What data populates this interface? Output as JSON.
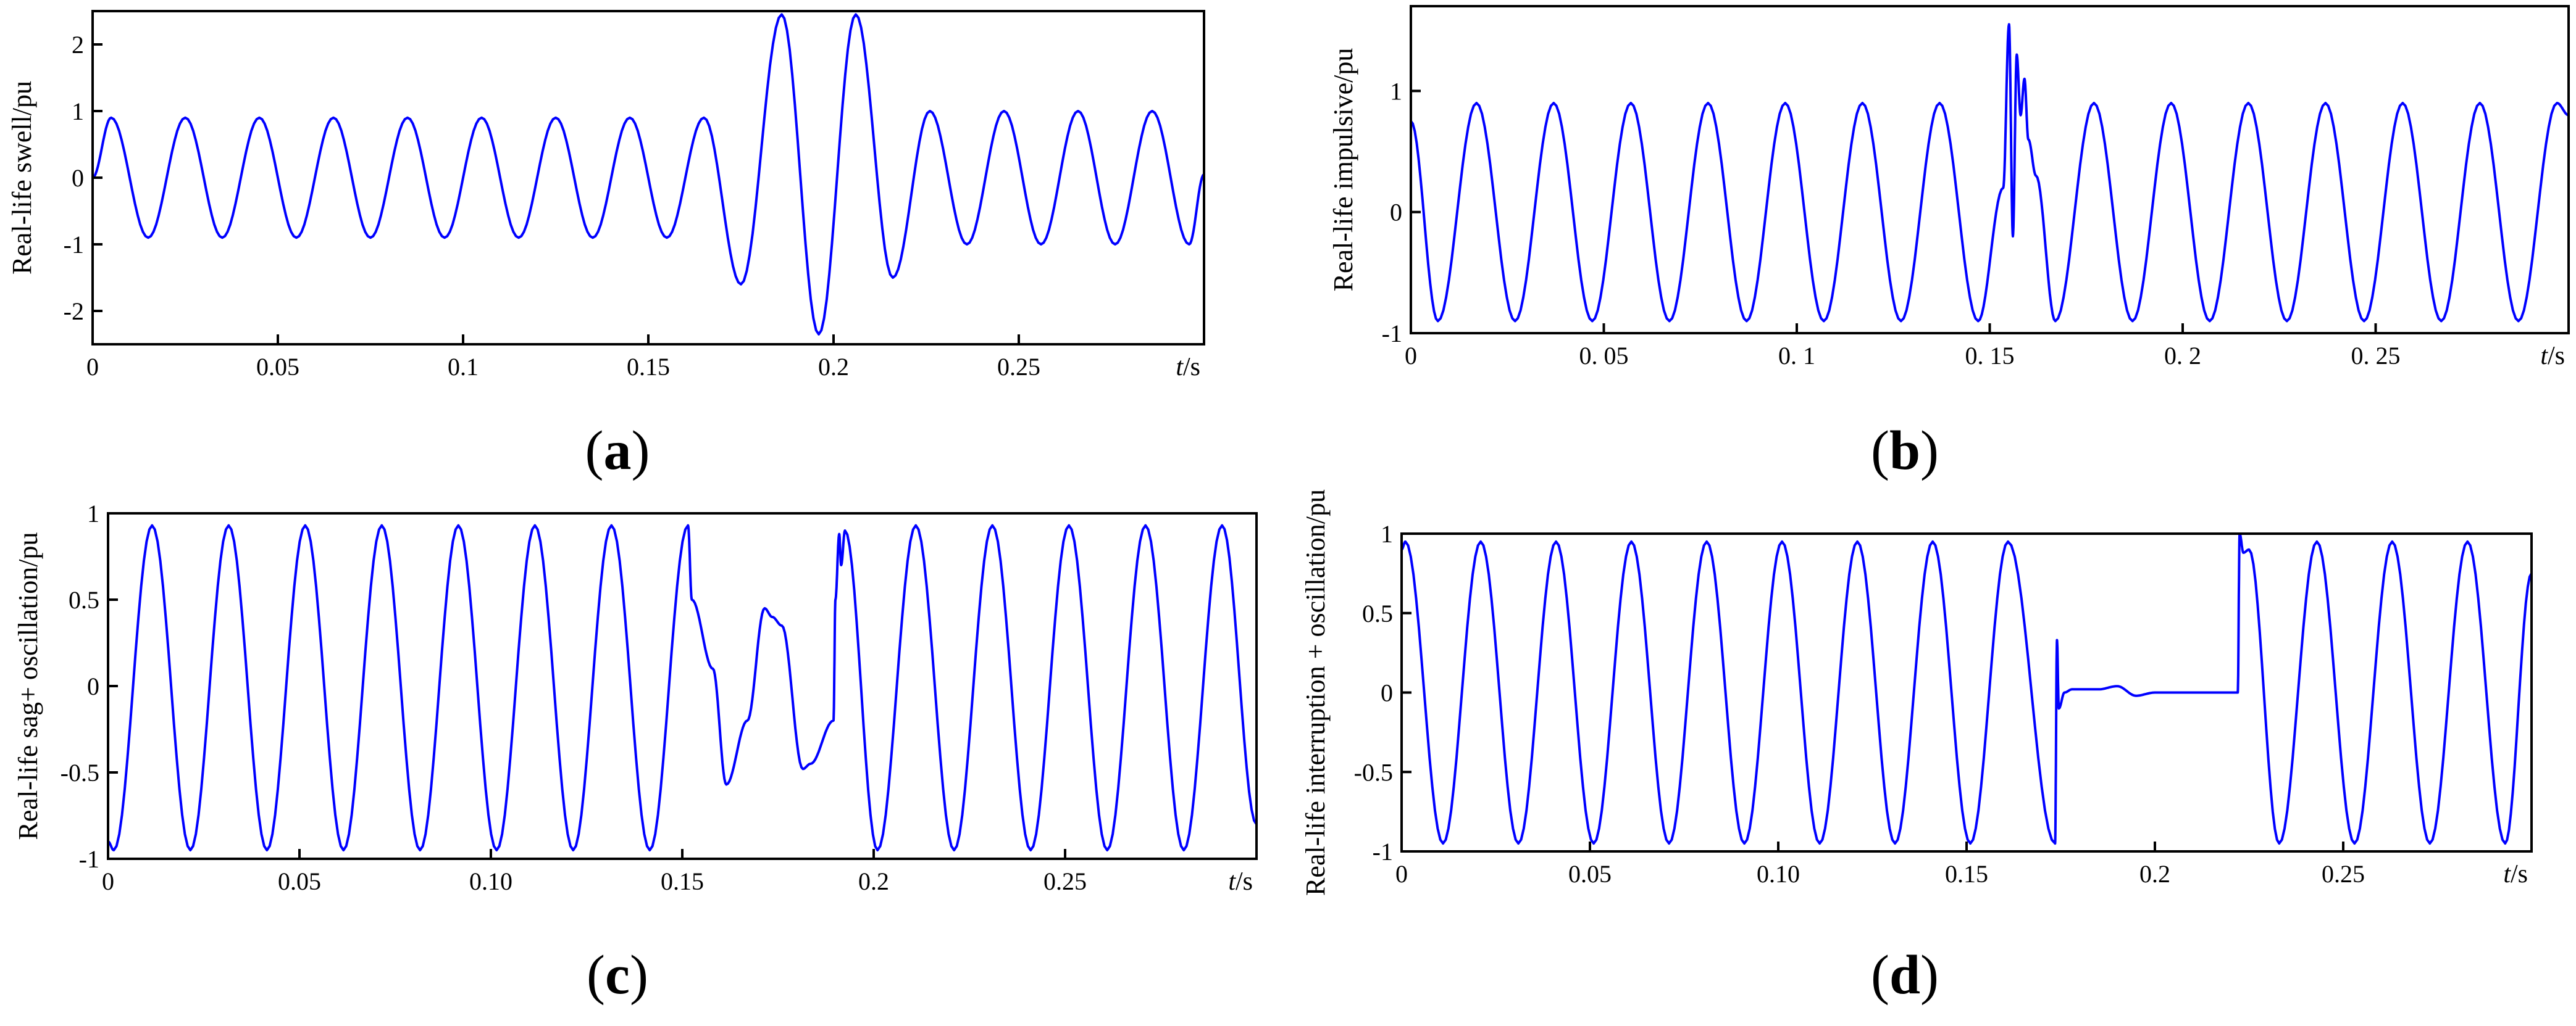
{
  "chart_data": [
    {
      "type": "line",
      "panel_label": "a",
      "ylabel": "Real-life swell/pu",
      "xunit_var": "t",
      "xunit_suffix": "/s",
      "xlim": [
        0,
        0.3
      ],
      "ylim": [
        -2.5,
        2.5
      ],
      "xticks": [
        0,
        0.05,
        0.1,
        0.15,
        0.2,
        0.25
      ],
      "xtick_labels": [
        "0",
        "0.05",
        "0.1",
        "0.15",
        "0.2",
        "0.25"
      ],
      "yticks": [
        -2,
        -1,
        0,
        1,
        2
      ],
      "ytick_labels": [
        "-2",
        "-1",
        "0",
        "1",
        "2"
      ],
      "series": [
        {
          "color": "#0000ff",
          "x": [
            0,
            0.005,
            0.015,
            0.025,
            0.035,
            0.045,
            0.055,
            0.065,
            0.075,
            0.085,
            0.095,
            0.105,
            0.115,
            0.125,
            0.135,
            0.145,
            0.155,
            0.165,
            0.175,
            0.186,
            0.196,
            0.206,
            0.216,
            0.226,
            0.236,
            0.246,
            0.256,
            0.266,
            0.276,
            0.286,
            0.296,
            0.3
          ],
          "y": [
            0,
            0.9,
            -0.9,
            0.9,
            -0.9,
            0.9,
            -0.9,
            0.9,
            -0.9,
            0.9,
            -0.9,
            0.9,
            -0.9,
            0.9,
            -0.9,
            0.9,
            -0.9,
            0.9,
            -1.6,
            2.45,
            -2.35,
            2.45,
            -1.5,
            1.0,
            -1.0,
            1.0,
            -1.0,
            1.0,
            -1.0,
            1.0,
            -1.0,
            0.05
          ]
        }
      ]
    },
    {
      "type": "line",
      "panel_label": "b",
      "ylabel": "Real-life impulsive/pu",
      "xunit_var": "t",
      "xunit_suffix": "/s",
      "xlim": [
        0,
        0.3
      ],
      "ylim": [
        -1,
        1.7
      ],
      "xticks": [
        0,
        0.05,
        0.1,
        0.15,
        0.2,
        0.25
      ],
      "xtick_labels": [
        "0",
        "0. 05",
        "0. 1",
        "0. 15",
        "0. 2",
        "0. 25"
      ],
      "yticks": [
        -1,
        0,
        1
      ],
      "ytick_labels": [
        "-1",
        "0",
        "1"
      ],
      "series": [
        {
          "color": "#0000ff",
          "x": [
            0,
            0.007,
            0.017,
            0.027,
            0.037,
            0.047,
            0.057,
            0.067,
            0.077,
            0.087,
            0.097,
            0.107,
            0.117,
            0.127,
            0.137,
            0.147,
            0.1535,
            0.155,
            0.156,
            0.157,
            0.158,
            0.159,
            0.16,
            0.162,
            0.167,
            0.177,
            0.187,
            0.197,
            0.207,
            0.217,
            0.227,
            0.237,
            0.247,
            0.257,
            0.267,
            0.277,
            0.287,
            0.297,
            0.3
          ],
          "y": [
            0.75,
            -0.9,
            0.9,
            -0.9,
            0.9,
            -0.9,
            0.9,
            -0.9,
            0.9,
            -0.9,
            0.9,
            -0.9,
            0.9,
            -0.9,
            0.9,
            -0.9,
            0.2,
            1.55,
            -0.2,
            1.3,
            0.8,
            1.1,
            0.6,
            0.3,
            -0.9,
            0.9,
            -0.9,
            0.9,
            -0.9,
            0.9,
            -0.9,
            0.9,
            -0.9,
            0.9,
            -0.9,
            0.9,
            -0.9,
            0.9,
            0.8
          ]
        }
      ]
    },
    {
      "type": "line",
      "panel_label": "c",
      "ylabel": "Real-life sag+ oscillation/pu",
      "xunit_var": "t",
      "xunit_suffix": "/s",
      "xlim": [
        0,
        0.3
      ],
      "ylim": [
        -1,
        1
      ],
      "xticks": [
        0,
        0.05,
        0.1,
        0.15,
        0.2,
        0.25
      ],
      "xtick_labels": [
        "0",
        "0.05",
        "0.10",
        "0.15",
        "0.2",
        "0.25"
      ],
      "yticks": [
        -1,
        -0.5,
        0,
        0.5,
        1
      ],
      "ytick_labels": [
        "-1",
        "-0.5",
        "0",
        "0.5",
        "1"
      ],
      "series": [
        {
          "color": "#0000ff",
          "x": [
            0,
            0.0015,
            0.0115,
            0.0215,
            0.0315,
            0.0415,
            0.0515,
            0.0615,
            0.0715,
            0.0815,
            0.0915,
            0.1015,
            0.1115,
            0.1215,
            0.1315,
            0.1415,
            0.1515,
            0.1525,
            0.158,
            0.1615,
            0.167,
            0.1715,
            0.1735,
            0.176,
            0.1815,
            0.1835,
            0.1895,
            0.19,
            0.191,
            0.1915,
            0.1925,
            0.201,
            0.211,
            0.221,
            0.231,
            0.241,
            0.251,
            0.261,
            0.271,
            0.281,
            0.291,
            0.3
          ],
          "y": [
            -0.9,
            -0.95,
            0.93,
            -0.95,
            0.93,
            -0.95,
            0.93,
            -0.95,
            0.93,
            -0.95,
            0.93,
            -0.95,
            0.93,
            -0.95,
            0.93,
            -0.95,
            0.93,
            0.5,
            0.1,
            -0.57,
            -0.2,
            0.45,
            0.4,
            0.35,
            -0.48,
            -0.45,
            -0.2,
            0.5,
            0.88,
            0.7,
            0.9,
            -0.95,
            0.93,
            -0.95,
            0.93,
            -0.95,
            0.93,
            -0.95,
            0.93,
            -0.95,
            0.93,
            -0.8
          ]
        }
      ]
    },
    {
      "type": "line",
      "panel_label": "d",
      "ylabel": "Real-life interruption + oscillation/pu",
      "xunit_var": "t",
      "xunit_suffix": "/s",
      "xlim": [
        0,
        0.3
      ],
      "ylim": [
        -1,
        1
      ],
      "xticks": [
        0,
        0.05,
        0.1,
        0.15,
        0.2,
        0.25
      ],
      "xtick_labels": [
        "0",
        "0.05",
        "0.10",
        "0.15",
        "0.2",
        "0.25"
      ],
      "yticks": [
        -1,
        -0.5,
        0,
        0.5,
        1
      ],
      "ytick_labels": [
        "-1",
        "-0.5",
        "0",
        "0.5",
        "1"
      ],
      "series": [
        {
          "color": "#0000ff",
          "x": [
            0,
            0.001,
            0.011,
            0.021,
            0.031,
            0.041,
            0.051,
            0.061,
            0.071,
            0.081,
            0.091,
            0.101,
            0.111,
            0.121,
            0.131,
            0.141,
            0.151,
            0.161,
            0.1735,
            0.174,
            0.1745,
            0.176,
            0.178,
            0.185,
            0.19,
            0.195,
            0.2,
            0.21,
            0.222,
            0.2225,
            0.2235,
            0.225,
            0.233,
            0.243,
            0.253,
            0.263,
            0.273,
            0.283,
            0.293,
            0.3
          ],
          "y": [
            0.9,
            0.95,
            -0.95,
            0.95,
            -0.95,
            0.95,
            -0.95,
            0.95,
            -0.95,
            0.95,
            -0.95,
            0.95,
            -0.95,
            0.95,
            -0.95,
            0.95,
            -0.95,
            0.95,
            -0.95,
            0.33,
            -0.1,
            0.0,
            0.02,
            0.02,
            0.04,
            -0.02,
            0.0,
            0.0,
            0.0,
            1.0,
            0.88,
            0.9,
            -0.95,
            0.95,
            -0.95,
            0.95,
            -0.95,
            0.95,
            -0.95,
            0.75
          ]
        }
      ]
    }
  ]
}
